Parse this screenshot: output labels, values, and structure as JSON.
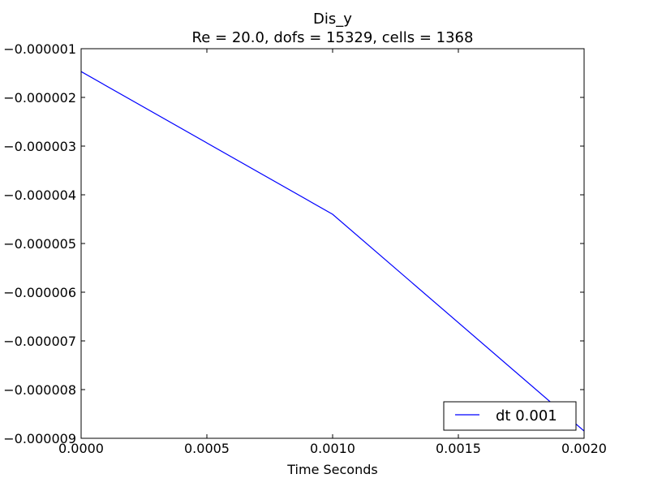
{
  "chart_data": {
    "type": "line",
    "title": "Dis_y",
    "subtitle": "Re = 20.0, dofs = 15329, cells = 1368",
    "xlabel": "Time Seconds",
    "ylabel": "",
    "xlim": [
      0.0,
      0.002
    ],
    "ylim": [
      -9e-06,
      -1e-06
    ],
    "x_ticks": [
      "0.0000",
      "0.0005",
      "0.0010",
      "0.0015",
      "0.0020"
    ],
    "y_ticks": [
      "−0.000001",
      "−0.000002",
      "−0.000003",
      "−0.000004",
      "−0.000005",
      "−0.000006",
      "−0.000007",
      "−0.000008",
      "−0.000009"
    ],
    "grid": false,
    "legend_position": "lower-right",
    "series": [
      {
        "name": "dt  0.001",
        "color": "#0000ff",
        "x": [
          0.0,
          0.001,
          0.002
        ],
        "y": [
          -1.47e-06,
          -4.4e-06,
          -8.85e-06
        ]
      }
    ]
  }
}
